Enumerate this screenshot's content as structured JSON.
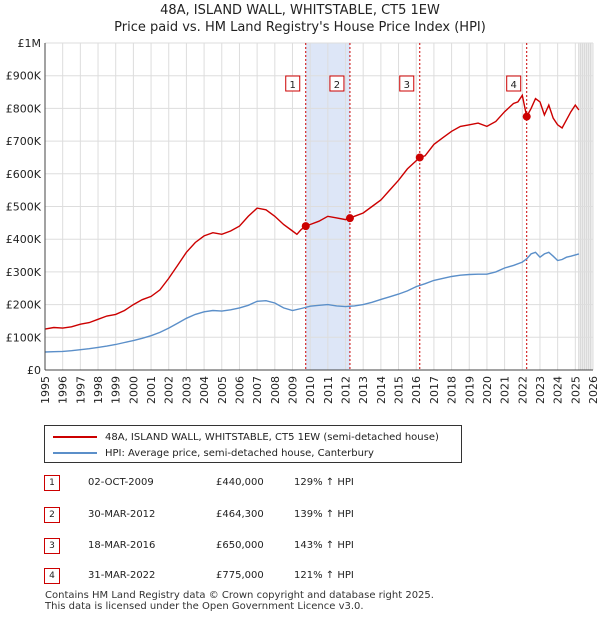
{
  "title": "48A, ISLAND WALL, WHITSTABLE, CT5 1EW",
  "subtitle": "Price paid vs. HM Land Registry's House Price Index (HPI)",
  "colors": {
    "property": "#cc0000",
    "hpi": "#5b8fc9",
    "band": "#dde6f7",
    "grid": "#dddddd"
  },
  "legend": {
    "property_label": "48A, ISLAND WALL, WHITSTABLE, CT5 1EW (semi-detached house)",
    "hpi_label": "HPI: Average price, semi-detached house, Canterbury"
  },
  "transactions": [
    {
      "num": "1",
      "date": "02-OCT-2009",
      "price": "£440,000",
      "hpi": "129% ↑ HPI"
    },
    {
      "num": "2",
      "date": "30-MAR-2012",
      "price": "£464,300",
      "hpi": "139% ↑ HPI"
    },
    {
      "num": "3",
      "date": "18-MAR-2016",
      "price": "£650,000",
      "hpi": "143% ↑ HPI"
    },
    {
      "num": "4",
      "date": "31-MAR-2022",
      "price": "£775,000",
      "hpi": "121% ↑ HPI"
    }
  ],
  "footer": {
    "line1": "Contains HM Land Registry data © Crown copyright and database right 2025.",
    "line2": "This data is licensed under the Open Government Licence v3.0."
  },
  "chart_data": {
    "type": "line",
    "xlim": [
      1995,
      2026
    ],
    "ylim": [
      0,
      1000000
    ],
    "x_ticks": [
      "1995",
      "1996",
      "1997",
      "1998",
      "1999",
      "2000",
      "2001",
      "2002",
      "2003",
      "2004",
      "2005",
      "2006",
      "2007",
      "2008",
      "2009",
      "2010",
      "2011",
      "2012",
      "2013",
      "2014",
      "2015",
      "2016",
      "2017",
      "2018",
      "2019",
      "2020",
      "2021",
      "2022",
      "2023",
      "2024",
      "2025",
      "2026"
    ],
    "y_ticks": [
      {
        "value": 0,
        "label": "£0"
      },
      {
        "value": 100000,
        "label": "£100K"
      },
      {
        "value": 200000,
        "label": "£200K"
      },
      {
        "value": 300000,
        "label": "£300K"
      },
      {
        "value": 400000,
        "label": "£400K"
      },
      {
        "value": 500000,
        "label": "£500K"
      },
      {
        "value": 600000,
        "label": "£600K"
      },
      {
        "value": 700000,
        "label": "£700K"
      },
      {
        "value": 800000,
        "label": "£800K"
      },
      {
        "value": 900000,
        "label": "£900K"
      },
      {
        "value": 1000000,
        "label": "£1M"
      }
    ],
    "shaded_ranges": [
      [
        2009.75,
        2012.25
      ],
      [
        2025.2,
        2026
      ]
    ],
    "series": [
      {
        "name": "48A, ISLAND WALL, WHITSTABLE, CT5 1EW (semi-detached house)",
        "x": [
          1995.0,
          1995.5,
          1996.0,
          1996.5,
          1997.0,
          1997.5,
          1998.0,
          1998.5,
          1999.0,
          1999.5,
          2000.0,
          2000.5,
          2001.0,
          2001.5,
          2002.0,
          2002.5,
          2003.0,
          2003.5,
          2004.0,
          2004.5,
          2005.0,
          2005.5,
          2006.0,
          2006.5,
          2007.0,
          2007.5,
          2008.0,
          2008.5,
          2009.0,
          2009.25,
          2009.5,
          2009.75,
          2010.0,
          2010.5,
          2011.0,
          2011.5,
          2012.0,
          2012.25,
          2012.5,
          2013.0,
          2013.5,
          2014.0,
          2014.5,
          2015.0,
          2015.5,
          2016.0,
          2016.2,
          2016.5,
          2017.0,
          2017.5,
          2018.0,
          2018.5,
          2019.0,
          2019.5,
          2020.0,
          2020.5,
          2021.0,
          2021.5,
          2021.75,
          2022.0,
          2022.25,
          2022.5,
          2022.75,
          2023.0,
          2023.25,
          2023.5,
          2023.75,
          2024.0,
          2024.25,
          2024.5,
          2024.75,
          2025.0,
          2025.2
        ],
        "values": [
          125000,
          130000,
          128000,
          132000,
          140000,
          145000,
          155000,
          165000,
          170000,
          182000,
          200000,
          215000,
          225000,
          245000,
          280000,
          320000,
          360000,
          390000,
          410000,
          420000,
          415000,
          425000,
          440000,
          470000,
          495000,
          490000,
          470000,
          445000,
          425000,
          415000,
          430000,
          440000,
          445000,
          455000,
          470000,
          465000,
          460000,
          464300,
          470000,
          480000,
          500000,
          520000,
          550000,
          580000,
          615000,
          640000,
          650000,
          655000,
          690000,
          710000,
          730000,
          745000,
          750000,
          755000,
          745000,
          760000,
          790000,
          815000,
          820000,
          840000,
          775000,
          800000,
          830000,
          820000,
          780000,
          810000,
          770000,
          750000,
          740000,
          765000,
          790000,
          810000,
          795000
        ]
      },
      {
        "name": "HPI: Average price, semi-detached house, Canterbury",
        "x": [
          1995.0,
          1995.5,
          1996.0,
          1996.5,
          1997.0,
          1997.5,
          1998.0,
          1998.5,
          1999.0,
          1999.5,
          2000.0,
          2000.5,
          2001.0,
          2001.5,
          2002.0,
          2002.5,
          2003.0,
          2003.5,
          2004.0,
          2004.5,
          2005.0,
          2005.5,
          2006.0,
          2006.5,
          2007.0,
          2007.5,
          2008.0,
          2008.5,
          2009.0,
          2009.5,
          2010.0,
          2010.5,
          2011.0,
          2011.5,
          2012.0,
          2012.5,
          2013.0,
          2013.5,
          2014.0,
          2014.5,
          2015.0,
          2015.5,
          2016.0,
          2016.5,
          2017.0,
          2017.5,
          2018.0,
          2018.5,
          2019.0,
          2019.5,
          2020.0,
          2020.5,
          2021.0,
          2021.5,
          2022.0,
          2022.25,
          2022.5,
          2022.75,
          2023.0,
          2023.25,
          2023.5,
          2023.75,
          2024.0,
          2024.25,
          2024.5,
          2024.75,
          2025.0,
          2025.2
        ],
        "values": [
          55000,
          56000,
          57000,
          59000,
          62000,
          65000,
          69000,
          73000,
          78000,
          84000,
          90000,
          97000,
          105000,
          115000,
          128000,
          143000,
          158000,
          170000,
          178000,
          182000,
          180000,
          184000,
          190000,
          198000,
          210000,
          212000,
          205000,
          190000,
          182000,
          188000,
          195000,
          198000,
          200000,
          196000,
          194000,
          196000,
          200000,
          207000,
          216000,
          224000,
          232000,
          242000,
          255000,
          264000,
          274000,
          280000,
          286000,
          290000,
          292000,
          293000,
          293000,
          300000,
          312000,
          320000,
          330000,
          340000,
          355000,
          360000,
          345000,
          355000,
          360000,
          348000,
          335000,
          338000,
          345000,
          348000,
          352000,
          355000
        ]
      }
    ],
    "sales": [
      {
        "label": "1",
        "x": 2009.75,
        "value": 440000
      },
      {
        "label": "2",
        "x": 2012.25,
        "value": 464300
      },
      {
        "label": "3",
        "x": 2016.2,
        "value": 650000
      },
      {
        "label": "4",
        "x": 2022.25,
        "value": 775000
      }
    ]
  }
}
